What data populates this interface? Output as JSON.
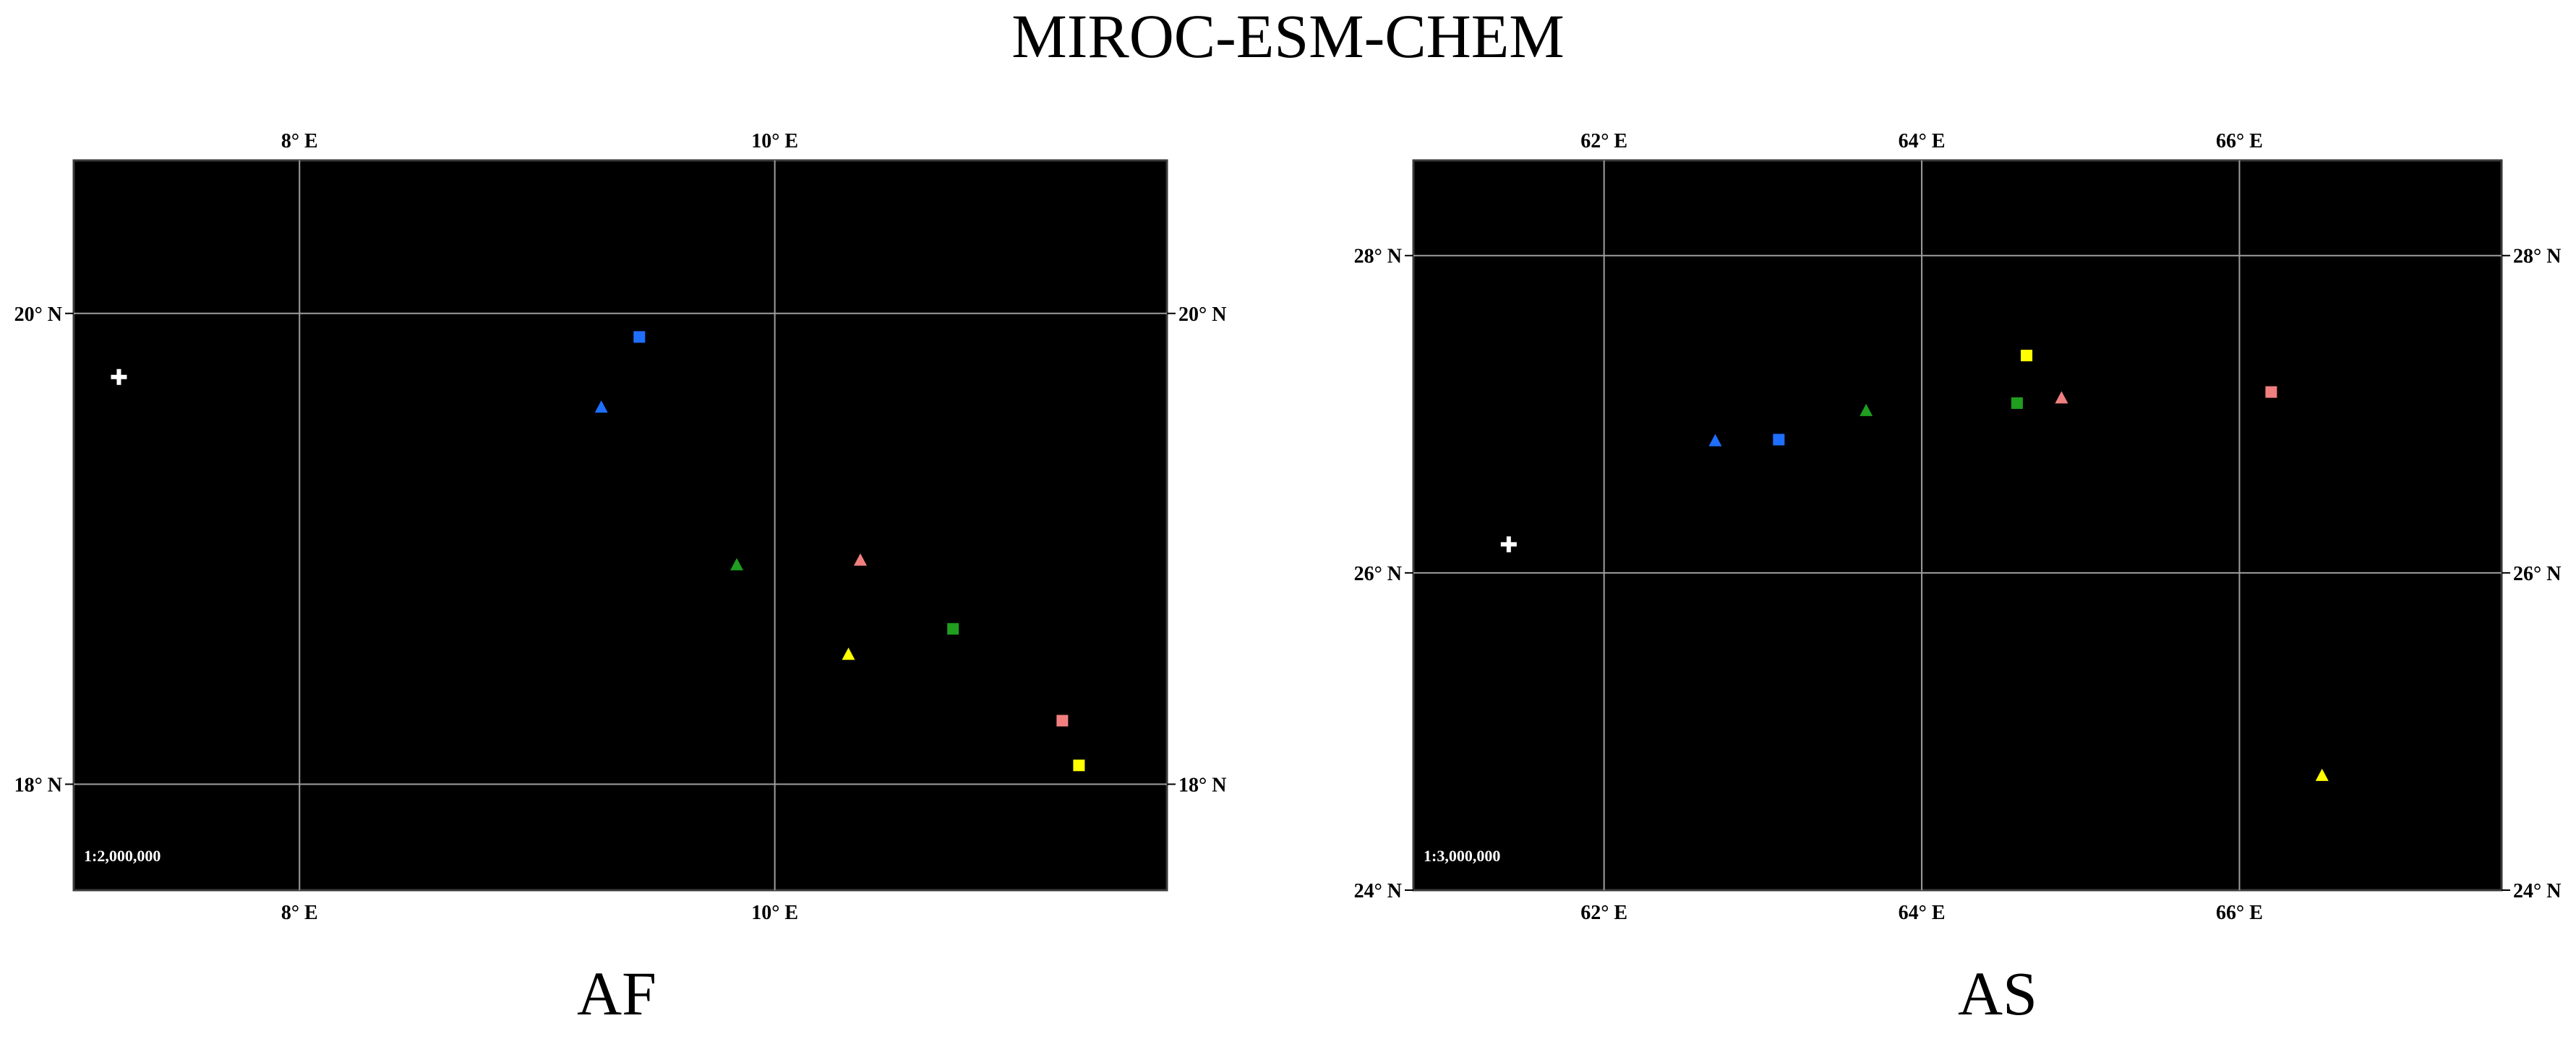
{
  "figure": {
    "title": "MIROC-ESM-CHEM"
  },
  "colors": {
    "background": "#000000",
    "grid": "#9e9e9e",
    "frame": "#3a3a3a",
    "white_marker": "#ffffff",
    "blue": "#1f6fff",
    "green": "#1f9e1f",
    "pink": "#f08080",
    "yellow": "#ffff00"
  },
  "maps": [
    {
      "id": "af",
      "label": "AF",
      "scale_text": "1:2,000,000",
      "lon_range": [
        7.05,
        11.65
      ],
      "lat_range": [
        17.55,
        20.65
      ],
      "lon_grid": [
        8,
        10
      ],
      "lat_grid": [
        18,
        20
      ],
      "lon_tick_labels": [
        "8° E",
        "10° E"
      ],
      "lat_tick_labels": [
        "18° N",
        "20° N"
      ],
      "markers": [
        {
          "shape": "plus",
          "color": "white",
          "lon": 7.24,
          "lat": 19.73
        },
        {
          "shape": "square",
          "color": "blue",
          "lon": 9.43,
          "lat": 19.9
        },
        {
          "shape": "triangle",
          "color": "blue",
          "lon": 9.27,
          "lat": 19.6
        },
        {
          "shape": "triangle",
          "color": "green",
          "lon": 9.84,
          "lat": 18.93
        },
        {
          "shape": "triangle",
          "color": "pink",
          "lon": 10.36,
          "lat": 18.95
        },
        {
          "shape": "square",
          "color": "green",
          "lon": 10.75,
          "lat": 18.66
        },
        {
          "shape": "triangle",
          "color": "yellow",
          "lon": 10.31,
          "lat": 18.55
        },
        {
          "shape": "square",
          "color": "pink",
          "lon": 11.21,
          "lat": 18.27
        },
        {
          "shape": "square",
          "color": "yellow",
          "lon": 11.28,
          "lat": 18.08
        }
      ]
    },
    {
      "id": "as",
      "label": "AS",
      "scale_text": "1:3,000,000",
      "lon_range": [
        60.8,
        67.65
      ],
      "lat_range": [
        24.0,
        28.6
      ],
      "lon_grid": [
        62,
        64,
        66
      ],
      "lat_grid": [
        24,
        26,
        28
      ],
      "lon_tick_labels": [
        "62° E",
        "64° E",
        "66° E"
      ],
      "lat_tick_labels": [
        "24° N",
        "26° N",
        "28° N"
      ],
      "markers": [
        {
          "shape": "plus",
          "color": "white",
          "lon": 61.4,
          "lat": 26.18
        },
        {
          "shape": "triangle",
          "color": "blue",
          "lon": 62.7,
          "lat": 26.83
        },
        {
          "shape": "square",
          "color": "blue",
          "lon": 63.1,
          "lat": 26.84
        },
        {
          "shape": "triangle",
          "color": "green",
          "lon": 63.65,
          "lat": 27.02
        },
        {
          "shape": "square",
          "color": "yellow",
          "lon": 64.66,
          "lat": 27.37
        },
        {
          "shape": "square",
          "color": "green",
          "lon": 64.6,
          "lat": 27.07
        },
        {
          "shape": "triangle",
          "color": "pink",
          "lon": 64.88,
          "lat": 27.1
        },
        {
          "shape": "square",
          "color": "pink",
          "lon": 66.2,
          "lat": 27.14
        },
        {
          "shape": "triangle",
          "color": "yellow",
          "lon": 66.52,
          "lat": 24.72
        }
      ]
    }
  ]
}
